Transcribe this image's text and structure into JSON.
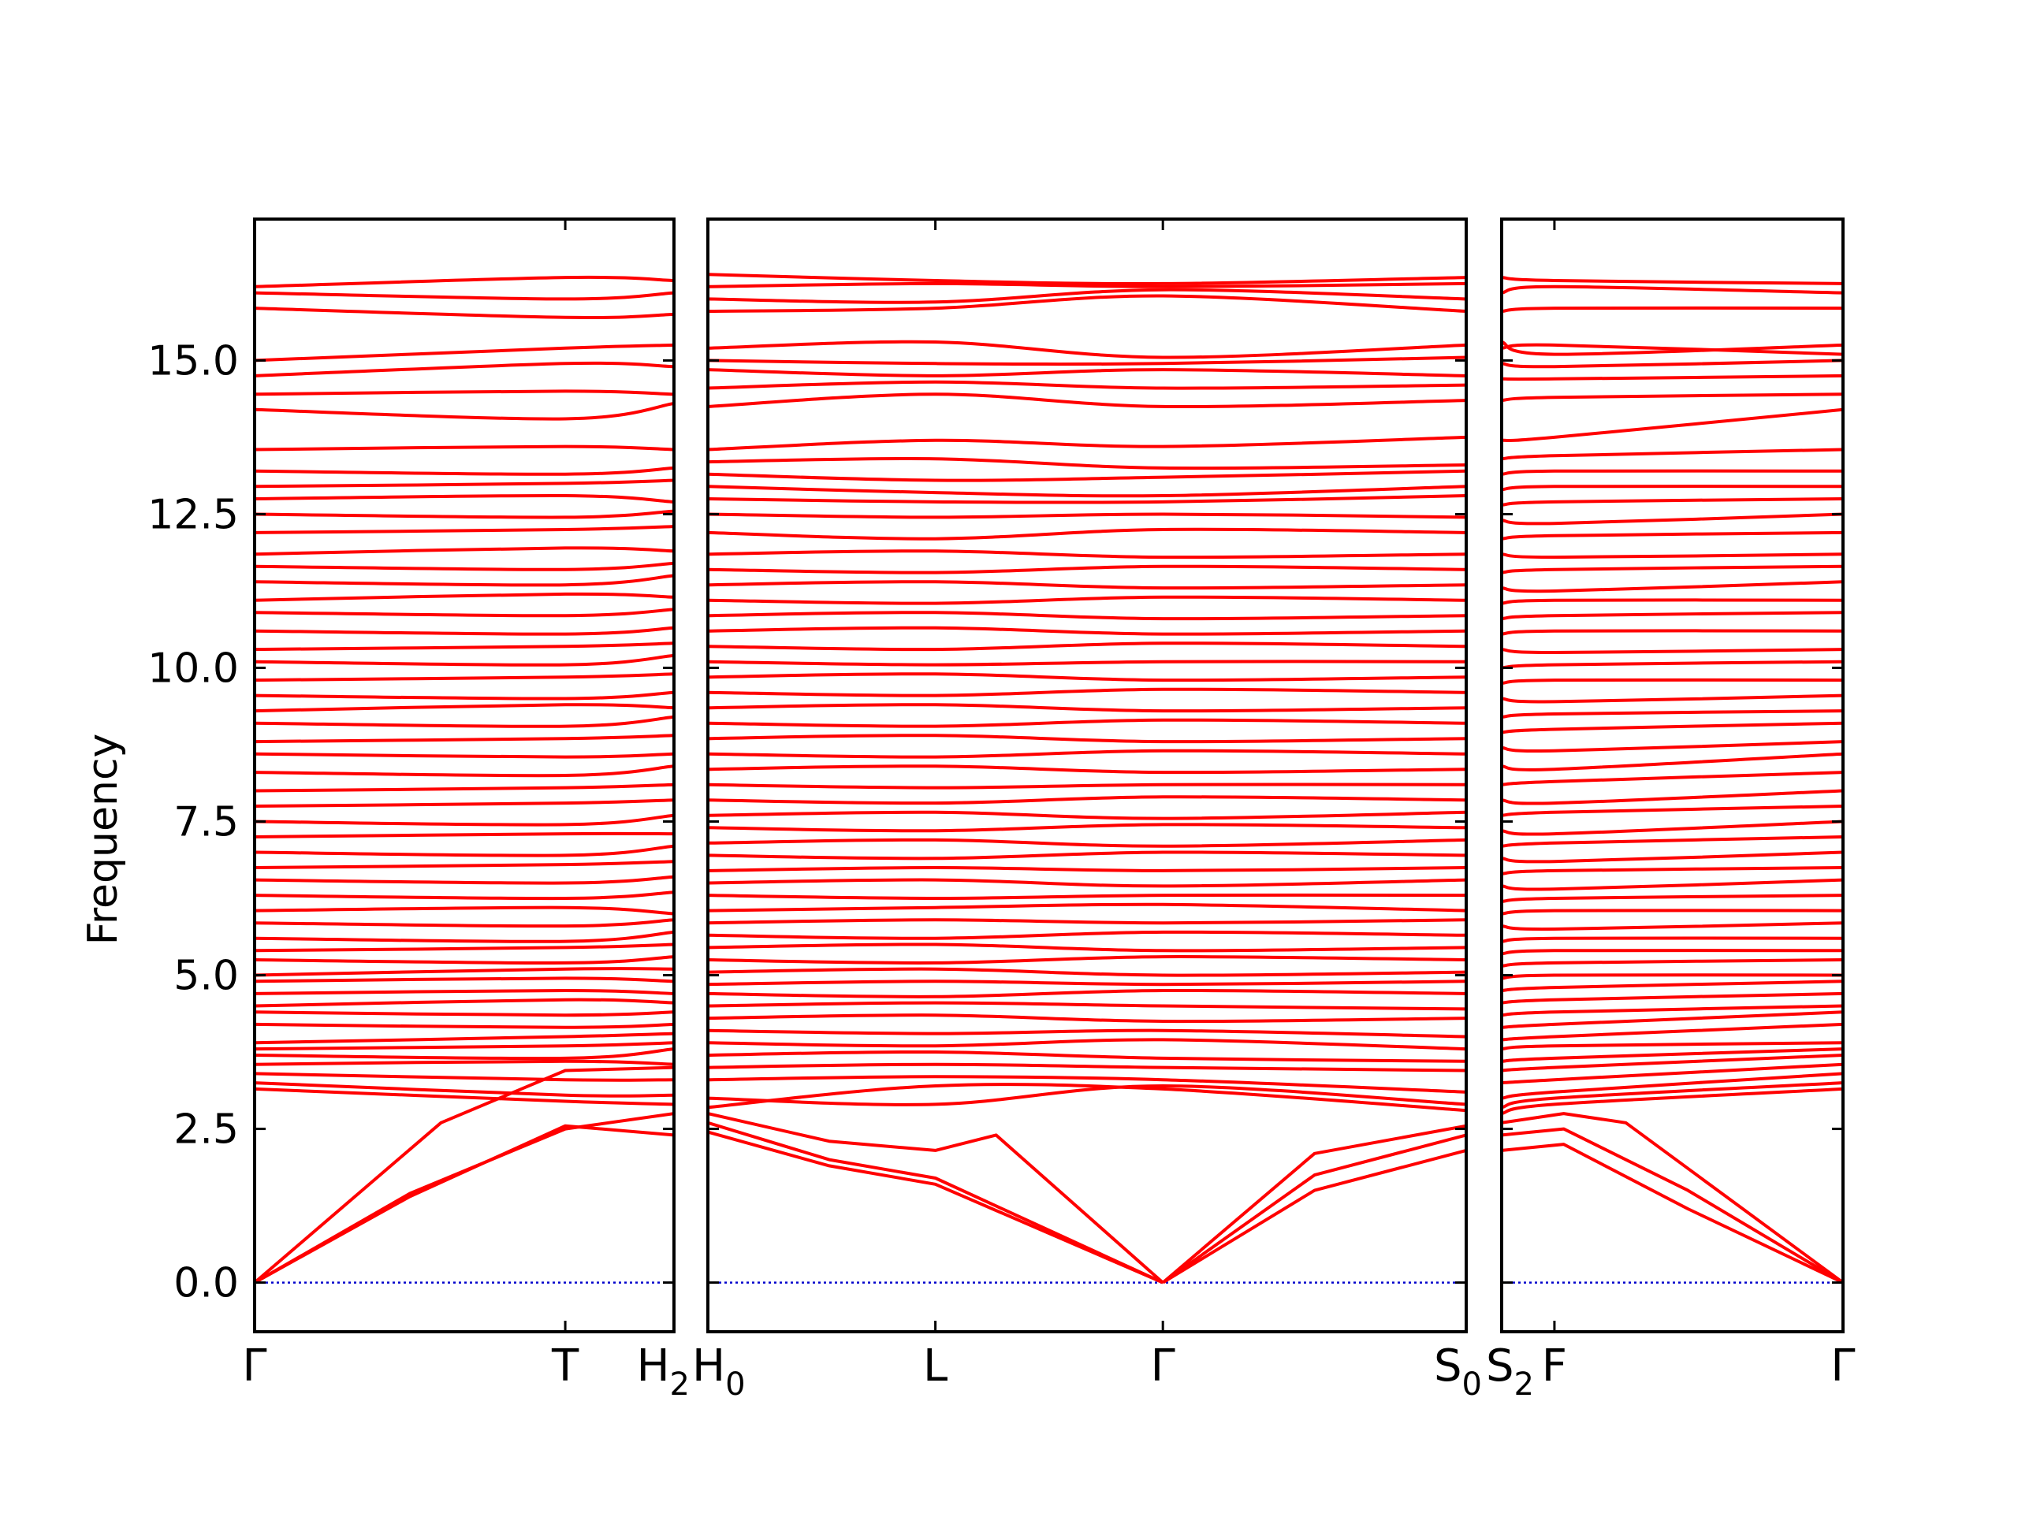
{
  "chart_data": {
    "type": "line",
    "title": "",
    "xlabel": "",
    "ylabel": "Frequency",
    "ylim": [
      -0.8,
      17.3
    ],
    "yticks": [
      {
        "value": 0.0,
        "label": "0.0"
      },
      {
        "value": 2.5,
        "label": "2.5"
      },
      {
        "value": 5.0,
        "label": "5.0"
      },
      {
        "value": 7.5,
        "label": "7.5"
      },
      {
        "value": 10.0,
        "label": "10.0"
      },
      {
        "value": 12.5,
        "label": "12.5"
      },
      {
        "value": 15.0,
        "label": "15.0"
      }
    ],
    "band_color": "#ff0000",
    "zero_line_color": "#0000cc",
    "grid": false,
    "legend": "none",
    "segments": [
      {
        "name": "segment-1",
        "xlim": [
          0,
          1.35
        ],
        "path_labels": [
          {
            "x": 0,
            "text": "Γ",
            "sub": ""
          },
          {
            "x": 1.0,
            "text": "T",
            "sub": ""
          },
          {
            "x": 1.35,
            "text": "H",
            "sub": "2"
          }
        ],
        "acoustic": [
          [
            [
              0,
              0
            ],
            [
              0.6,
              2.6
            ],
            [
              1.0,
              3.45
            ],
            [
              1.35,
              3.5
            ]
          ],
          [
            [
              0,
              0
            ],
            [
              0.5,
              1.45
            ],
            [
              1.0,
              2.5
            ],
            [
              1.35,
              2.75
            ]
          ],
          [
            [
              0,
              0
            ],
            [
              0.5,
              1.4
            ],
            [
              1.0,
              2.55
            ],
            [
              1.35,
              2.4
            ]
          ]
        ],
        "optical": [
          [
            3.15,
            2.95,
            2.9
          ],
          [
            3.25,
            3.05,
            3.05
          ],
          [
            3.4,
            3.3,
            3.3
          ],
          [
            3.55,
            3.6,
            3.55
          ],
          [
            3.7,
            3.65,
            3.8
          ],
          [
            3.8,
            3.85,
            3.9
          ],
          [
            3.9,
            4.0,
            4.05
          ],
          [
            4.2,
            4.15,
            4.2
          ],
          [
            4.4,
            4.35,
            4.4
          ],
          [
            4.5,
            4.6,
            4.55
          ],
          [
            4.7,
            4.75,
            4.7
          ],
          [
            4.9,
            4.95,
            4.9
          ],
          [
            5.0,
            5.1,
            5.1
          ],
          [
            5.25,
            5.2,
            5.3
          ],
          [
            5.4,
            5.45,
            5.5
          ],
          [
            5.6,
            5.55,
            5.7
          ],
          [
            5.85,
            5.8,
            5.9
          ],
          [
            6.05,
            6.1,
            6.0
          ],
          [
            6.3,
            6.25,
            6.35
          ],
          [
            6.55,
            6.5,
            6.6
          ],
          [
            6.75,
            6.8,
            6.85
          ],
          [
            7.0,
            6.95,
            7.1
          ],
          [
            7.25,
            7.3,
            7.3
          ],
          [
            7.5,
            7.45,
            7.6
          ],
          [
            7.75,
            7.8,
            7.85
          ],
          [
            8.0,
            8.05,
            8.1
          ],
          [
            8.3,
            8.25,
            8.4
          ],
          [
            8.6,
            8.55,
            8.6
          ],
          [
            8.8,
            8.85,
            8.9
          ],
          [
            9.1,
            9.05,
            9.2
          ],
          [
            9.3,
            9.4,
            9.35
          ],
          [
            9.55,
            9.5,
            9.6
          ],
          [
            9.8,
            9.85,
            9.9
          ],
          [
            10.1,
            10.05,
            10.2
          ],
          [
            10.3,
            10.35,
            10.4
          ],
          [
            10.6,
            10.55,
            10.65
          ],
          [
            10.9,
            10.85,
            10.95
          ],
          [
            11.1,
            11.2,
            11.15
          ],
          [
            11.4,
            11.35,
            11.5
          ],
          [
            11.65,
            11.6,
            11.7
          ],
          [
            11.85,
            11.95,
            11.9
          ],
          [
            12.2,
            12.25,
            12.3
          ],
          [
            12.5,
            12.45,
            12.55
          ],
          [
            12.75,
            12.8,
            12.7
          ],
          [
            12.95,
            13.0,
            13.05
          ],
          [
            13.2,
            13.15,
            13.25
          ],
          [
            13.55,
            13.6,
            13.55
          ],
          [
            14.2,
            14.05,
            14.3
          ],
          [
            14.45,
            14.5,
            14.45
          ],
          [
            14.75,
            14.95,
            14.9
          ],
          [
            15.0,
            15.2,
            15.25
          ],
          [
            15.85,
            15.7,
            15.75
          ],
          [
            16.1,
            16.0,
            16.1
          ],
          [
            16.2,
            16.35,
            16.3
          ]
        ]
      },
      {
        "name": "segment-2",
        "xlim": [
          0,
          2.5
        ],
        "path_labels": [
          {
            "x": 0,
            "text": "H",
            "sub": "0"
          },
          {
            "x": 0.75,
            "text": "L",
            "sub": ""
          },
          {
            "x": 1.5,
            "text": "Γ",
            "sub": ""
          },
          {
            "x": 2.5,
            "text": "S",
            "sub": "0"
          }
        ],
        "acoustic": [
          [
            [
              0,
              2.45
            ],
            [
              0.4,
              1.9
            ],
            [
              0.75,
              1.6
            ],
            [
              1.5,
              0
            ]
          ],
          [
            [
              0,
              2.6
            ],
            [
              0.4,
              2.0
            ],
            [
              0.75,
              1.7
            ],
            [
              1.5,
              0
            ]
          ],
          [
            [
              0,
              2.75
            ],
            [
              0.4,
              2.3
            ],
            [
              0.75,
              2.15
            ],
            [
              0.95,
              2.4
            ],
            [
              1.5,
              0
            ]
          ],
          [
            [
              1.5,
              0
            ],
            [
              2.0,
              1.5
            ],
            [
              2.5,
              2.15
            ]
          ],
          [
            [
              1.5,
              0
            ],
            [
              2.0,
              1.75
            ],
            [
              2.5,
              2.4
            ]
          ],
          [
            [
              1.5,
              0
            ],
            [
              2.0,
              2.1
            ],
            [
              2.5,
              2.55
            ]
          ]
        ],
        "optical": [
          [
            2.85,
            3.2,
            3.15,
            2.8
          ],
          [
            3.0,
            2.9,
            3.2,
            2.9
          ],
          [
            3.3,
            3.35,
            3.3,
            3.1
          ],
          [
            3.5,
            3.55,
            3.5,
            3.45
          ],
          [
            3.7,
            3.75,
            3.65,
            3.6
          ],
          [
            3.9,
            3.85,
            3.95,
            3.8
          ],
          [
            4.1,
            4.05,
            4.1,
            4.0
          ],
          [
            4.3,
            4.35,
            4.25,
            4.3
          ],
          [
            4.5,
            4.55,
            4.5,
            4.45
          ],
          [
            4.7,
            4.65,
            4.75,
            4.7
          ],
          [
            4.85,
            4.9,
            4.85,
            4.9
          ],
          [
            5.05,
            5.1,
            5.0,
            5.05
          ],
          [
            5.25,
            5.2,
            5.3,
            5.25
          ],
          [
            5.45,
            5.5,
            5.4,
            5.45
          ],
          [
            5.65,
            5.6,
            5.7,
            5.65
          ],
          [
            5.85,
            5.9,
            5.85,
            5.9
          ],
          [
            6.05,
            6.1,
            6.15,
            6.05
          ],
          [
            6.3,
            6.25,
            6.3,
            6.3
          ],
          [
            6.5,
            6.55,
            6.45,
            6.55
          ],
          [
            6.7,
            6.75,
            6.7,
            6.75
          ],
          [
            6.95,
            6.9,
            7.0,
            6.95
          ],
          [
            7.15,
            7.2,
            7.1,
            7.2
          ],
          [
            7.4,
            7.35,
            7.45,
            7.4
          ],
          [
            7.6,
            7.65,
            7.55,
            7.65
          ],
          [
            7.85,
            7.8,
            7.9,
            7.85
          ],
          [
            8.1,
            8.05,
            8.1,
            8.1
          ],
          [
            8.35,
            8.4,
            8.3,
            8.35
          ],
          [
            8.6,
            8.55,
            8.65,
            8.6
          ],
          [
            8.85,
            8.9,
            8.8,
            8.85
          ],
          [
            9.1,
            9.05,
            9.15,
            9.1
          ],
          [
            9.35,
            9.4,
            9.3,
            9.35
          ],
          [
            9.6,
            9.55,
            9.65,
            9.6
          ],
          [
            9.85,
            9.9,
            9.8,
            9.85
          ],
          [
            10.1,
            10.05,
            10.1,
            10.1
          ],
          [
            10.35,
            10.3,
            10.4,
            10.35
          ],
          [
            10.6,
            10.65,
            10.55,
            10.6
          ],
          [
            10.85,
            10.9,
            10.8,
            10.85
          ],
          [
            11.1,
            11.05,
            11.15,
            11.1
          ],
          [
            11.35,
            11.4,
            11.3,
            11.35
          ],
          [
            11.6,
            11.55,
            11.65,
            11.6
          ],
          [
            11.85,
            11.9,
            11.8,
            11.85
          ],
          [
            12.2,
            12.1,
            12.25,
            12.2
          ],
          [
            12.5,
            12.45,
            12.5,
            12.45
          ],
          [
            12.75,
            12.7,
            12.7,
            12.8
          ],
          [
            12.95,
            12.85,
            12.8,
            12.95
          ],
          [
            13.15,
            13.05,
            13.1,
            13.2
          ],
          [
            13.35,
            13.4,
            13.25,
            13.3
          ],
          [
            13.55,
            13.7,
            13.6,
            13.75
          ],
          [
            14.25,
            14.45,
            14.25,
            14.35
          ],
          [
            14.55,
            14.65,
            14.55,
            14.6
          ],
          [
            14.85,
            14.75,
            14.85,
            14.75
          ],
          [
            15.0,
            14.95,
            14.95,
            15.05
          ],
          [
            15.2,
            15.3,
            15.05,
            15.25
          ],
          [
            15.8,
            15.85,
            16.05,
            15.8
          ],
          [
            16.0,
            15.95,
            16.15,
            16.0
          ],
          [
            16.2,
            16.25,
            16.2,
            16.25
          ],
          [
            16.4,
            16.3,
            16.25,
            16.35
          ]
        ]
      },
      {
        "name": "segment-3",
        "xlim": [
          0,
          1.1
        ],
        "path_labels": [
          {
            "x": 0,
            "text": "S",
            "sub": "2"
          },
          {
            "x": 0.17,
            "text": "F",
            "sub": ""
          },
          {
            "x": 1.1,
            "text": "Γ",
            "sub": ""
          }
        ],
        "acoustic": [
          [
            [
              0,
              2.15
            ],
            [
              0.2,
              2.25
            ],
            [
              0.6,
              1.2
            ],
            [
              1.1,
              0
            ]
          ],
          [
            [
              0,
              2.4
            ],
            [
              0.2,
              2.5
            ],
            [
              0.6,
              1.5
            ],
            [
              1.1,
              0
            ]
          ],
          [
            [
              0,
              2.6
            ],
            [
              0.2,
              2.75
            ],
            [
              0.4,
              2.6
            ],
            [
              1.1,
              0
            ]
          ]
        ],
        "optical": [
          [
            2.75,
            2.9,
            3.15
          ],
          [
            2.85,
            3.0,
            3.25
          ],
          [
            3.0,
            3.1,
            3.4
          ],
          [
            3.25,
            3.3,
            3.55
          ],
          [
            3.45,
            3.5,
            3.7
          ],
          [
            3.6,
            3.65,
            3.8
          ],
          [
            3.8,
            3.85,
            3.9
          ],
          [
            3.95,
            4.0,
            4.2
          ],
          [
            4.15,
            4.2,
            4.4
          ],
          [
            4.35,
            4.4,
            4.5
          ],
          [
            4.55,
            4.6,
            4.7
          ],
          [
            4.75,
            4.8,
            4.9
          ],
          [
            4.95,
            5.0,
            5.0
          ],
          [
            5.15,
            5.2,
            5.25
          ],
          [
            5.35,
            5.4,
            5.4
          ],
          [
            5.55,
            5.6,
            5.6
          ],
          [
            5.8,
            5.75,
            5.85
          ],
          [
            6.0,
            6.05,
            6.05
          ],
          [
            6.2,
            6.25,
            6.3
          ],
          [
            6.45,
            6.4,
            6.55
          ],
          [
            6.65,
            6.7,
            6.75
          ],
          [
            6.9,
            6.85,
            7.0
          ],
          [
            7.1,
            7.15,
            7.25
          ],
          [
            7.35,
            7.3,
            7.5
          ],
          [
            7.6,
            7.65,
            7.75
          ],
          [
            7.85,
            7.8,
            8.0
          ],
          [
            8.1,
            8.15,
            8.3
          ],
          [
            8.4,
            8.35,
            8.6
          ],
          [
            8.7,
            8.65,
            8.8
          ],
          [
            8.95,
            9.0,
            9.1
          ],
          [
            9.2,
            9.25,
            9.3
          ],
          [
            9.5,
            9.45,
            9.55
          ],
          [
            9.75,
            9.8,
            9.8
          ],
          [
            10.0,
            10.05,
            10.1
          ],
          [
            10.3,
            10.25,
            10.3
          ],
          [
            10.55,
            10.6,
            10.6
          ],
          [
            10.8,
            10.85,
            10.9
          ],
          [
            11.05,
            11.1,
            11.1
          ],
          [
            11.3,
            11.25,
            11.4
          ],
          [
            11.55,
            11.6,
            11.65
          ],
          [
            11.85,
            11.8,
            11.85
          ],
          [
            12.1,
            12.15,
            12.2
          ],
          [
            12.4,
            12.35,
            12.5
          ],
          [
            12.65,
            12.7,
            12.75
          ],
          [
            12.9,
            12.95,
            12.95
          ],
          [
            13.15,
            13.2,
            13.2
          ],
          [
            13.4,
            13.45,
            13.55
          ],
          [
            13.7,
            13.75,
            14.2
          ],
          [
            14.35,
            14.4,
            14.45
          ],
          [
            14.7,
            14.7,
            14.75
          ],
          [
            14.95,
            14.9,
            15.0
          ],
          [
            15.2,
            15.25,
            15.1
          ],
          [
            15.3,
            15.1,
            15.25
          ],
          [
            15.8,
            15.85,
            15.85
          ],
          [
            16.1,
            16.2,
            16.1
          ],
          [
            16.35,
            16.3,
            16.25
          ]
        ]
      }
    ]
  }
}
